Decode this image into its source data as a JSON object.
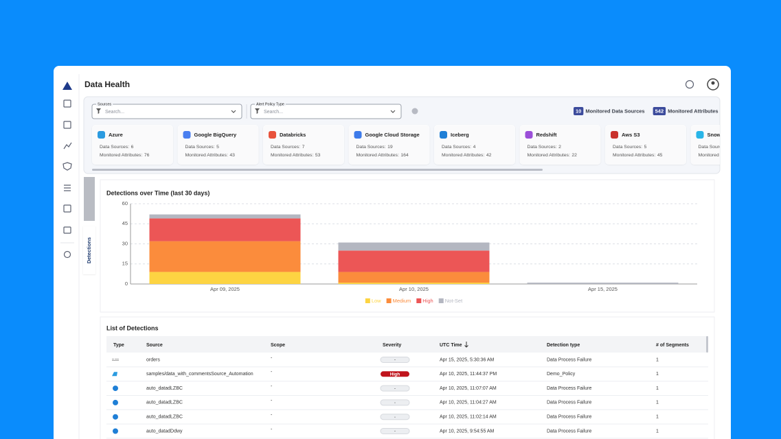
{
  "header": {
    "title": "Data Health"
  },
  "filters": [
    {
      "label": "Sources",
      "placeholder": "Search..."
    },
    {
      "label": "Alert Policy Type",
      "placeholder": "Search..."
    }
  ],
  "summary": [
    {
      "count": 10,
      "label": "Monitored Data Sources"
    },
    {
      "count": 542,
      "label": "Monitored Attributes"
    }
  ],
  "source_labels": {
    "data_sources": "Data Sources:",
    "attributes": "Monitored Attributes:"
  },
  "sources": [
    {
      "name": "Azure",
      "data_sources": 6,
      "attributes": 76,
      "color": "#2b9be0"
    },
    {
      "name": "Google BigQuery",
      "data_sources": 5,
      "attributes": 43,
      "color": "#4a7ff0"
    },
    {
      "name": "Databricks",
      "data_sources": 7,
      "attributes": 53,
      "color": "#e8523c"
    },
    {
      "name": "Google Cloud Storage",
      "data_sources": 19,
      "attributes": 164,
      "color": "#3d7bea"
    },
    {
      "name": "Iceberg",
      "data_sources": 4,
      "attributes": 42,
      "color": "#1f7fd6"
    },
    {
      "name": "Redshift",
      "data_sources": 2,
      "attributes": 22,
      "color": "#9b4fd8"
    },
    {
      "name": "Aws S3",
      "data_sources": 5,
      "attributes": 45,
      "color": "#c9322c"
    },
    {
      "name": "Snowflake",
      "color": "#29b5e8"
    }
  ],
  "tabs": {
    "detections": "Detections"
  },
  "chart_data": {
    "type": "bar",
    "stacked": true,
    "title": "Detections over Time (last 30 days)",
    "categories": [
      "Apr 09, 2025",
      "Apr 10, 2025",
      "Apr 15, 2025"
    ],
    "series": [
      {
        "name": "Low",
        "color": "#fdd442",
        "values": [
          9,
          1,
          0
        ]
      },
      {
        "name": "Medium",
        "color": "#fb8c3c",
        "values": [
          23,
          8,
          0
        ]
      },
      {
        "name": "High",
        "color": "#ec5656",
        "values": [
          17,
          16,
          0
        ]
      },
      {
        "name": "Not-Set",
        "color": "#b4b7c1",
        "values": [
          3,
          6,
          1
        ]
      }
    ],
    "ylim": [
      0,
      60
    ],
    "yticks": [
      0,
      15,
      30,
      45,
      60
    ],
    "grid": true,
    "legend": "bottom"
  },
  "table": {
    "title": "List of Detections",
    "columns": [
      "Type",
      "Source",
      "Scope",
      "Severity",
      "UTC Time",
      "Detection type",
      "# of Segments"
    ],
    "rows": [
      {
        "icon": "file",
        "cells": [
          "orders",
          "-",
          "-",
          "Apr 15, 2025, 5:30:36 AM",
          "Data Process Failure",
          "1"
        ]
      },
      {
        "icon": "azure",
        "cells": [
          "samples/data_with_commentsSource_Automation",
          "-",
          "High",
          "Apr 10, 2025, 11:44:37 PM",
          "Demo_Policy",
          "1"
        ]
      },
      {
        "icon": "iceberg",
        "cells": [
          "auto_datadLZBC",
          "-",
          "-",
          "Apr 10, 2025, 11:07:07 AM",
          "Data Process Failure",
          "1"
        ]
      },
      {
        "icon": "iceberg",
        "cells": [
          "auto_datadLZBC",
          "-",
          "-",
          "Apr 10, 2025, 11:04:27 AM",
          "Data Process Failure",
          "1"
        ]
      },
      {
        "icon": "iceberg",
        "cells": [
          "auto_datadLZBC",
          "-",
          "-",
          "Apr 10, 2025, 11:02:14 AM",
          "Data Process Failure",
          "1"
        ]
      },
      {
        "icon": "iceberg",
        "cells": [
          "auto_datadDdwy",
          "-",
          "-",
          "Apr 10, 2025, 9:54:55 AM",
          "Data Process Failure",
          "1"
        ]
      }
    ]
  }
}
